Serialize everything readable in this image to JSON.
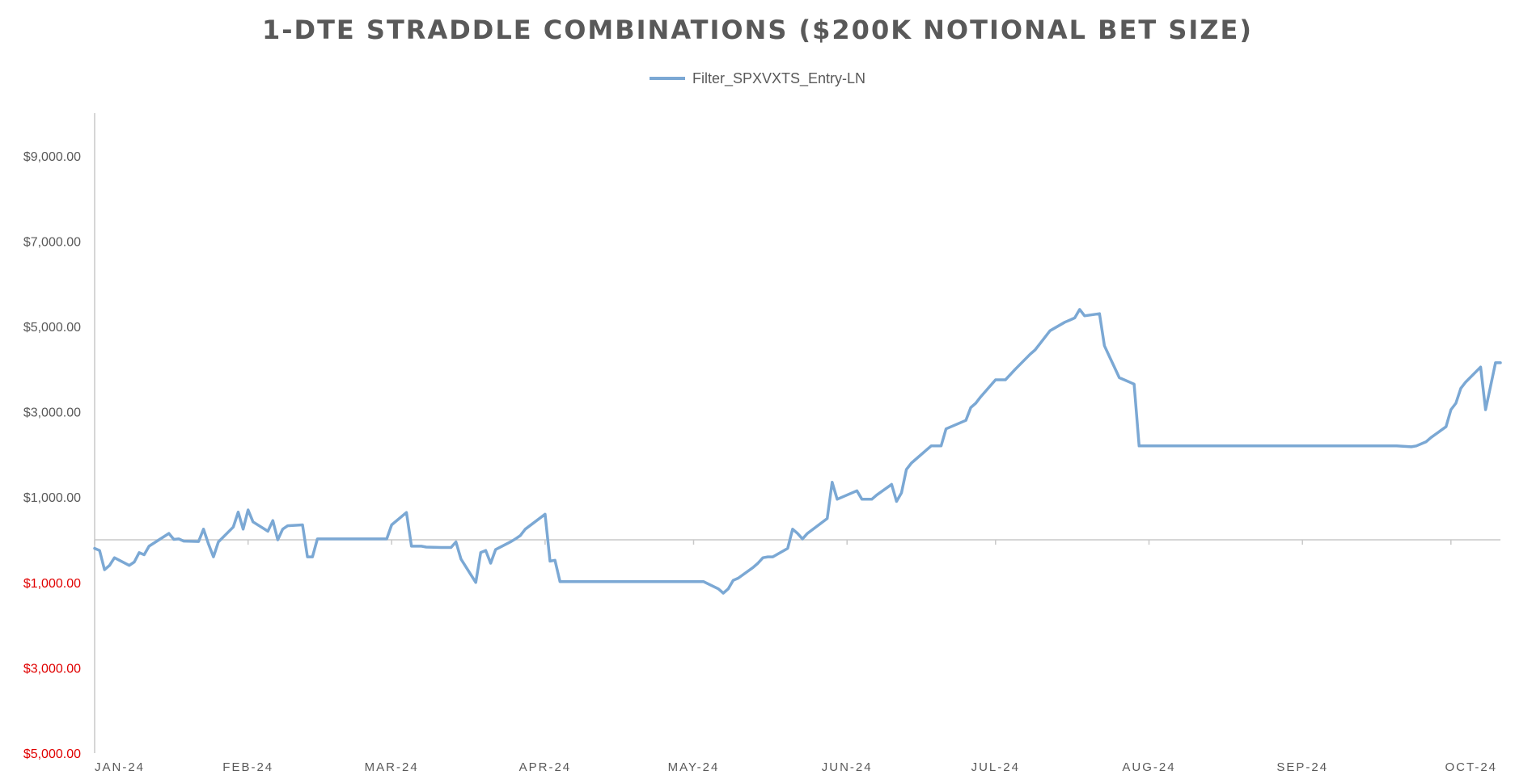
{
  "chart_data": {
    "type": "line",
    "title": "1-DTE STRADDLE COMBINATIONS ($200K NOTIONAL BET SIZE)",
    "xlabel": "",
    "ylabel": "",
    "ylim": [
      -5000,
      10000
    ],
    "y_ticks": [
      {
        "value": 9000,
        "label": "$9,000.00",
        "color": "#595959"
      },
      {
        "value": 7000,
        "label": "$7,000.00",
        "color": "#595959"
      },
      {
        "value": 5000,
        "label": "$5,000.00",
        "color": "#595959"
      },
      {
        "value": 3000,
        "label": "$3,000.00",
        "color": "#595959"
      },
      {
        "value": 1000,
        "label": "$1,000.00",
        "color": "#595959"
      },
      {
        "value": -1000,
        "label": "$1,000.00",
        "color": "#e00000"
      },
      {
        "value": -3000,
        "label": "$3,000.00",
        "color": "#e00000"
      },
      {
        "value": -5000,
        "label": "$5,000.00",
        "color": "#e00000"
      }
    ],
    "x_ticks": [
      "JAN-24",
      "FEB-24",
      "MAR-24",
      "APR-24",
      "MAY-24",
      "JUN-24",
      "JUL-24",
      "AUG-24",
      "SEP-24",
      "OCT-24"
    ],
    "legend_position": "top",
    "grid": false,
    "line_color": "#7ba8d4",
    "series": [
      {
        "name": "Filter_SPXVXTS_Entry-LN",
        "points": [
          [
            "2024-01-01",
            -200
          ],
          [
            "2024-01-02",
            -250
          ],
          [
            "2024-01-03",
            -700
          ],
          [
            "2024-01-04",
            -600
          ],
          [
            "2024-01-05",
            -420
          ],
          [
            "2024-01-08",
            -600
          ],
          [
            "2024-01-09",
            -520
          ],
          [
            "2024-01-10",
            -300
          ],
          [
            "2024-01-11",
            -350
          ],
          [
            "2024-01-12",
            -150
          ],
          [
            "2024-01-16",
            150
          ],
          [
            "2024-01-17",
            10
          ],
          [
            "2024-01-18",
            20
          ],
          [
            "2024-01-19",
            -30
          ],
          [
            "2024-01-22",
            -40
          ],
          [
            "2024-01-23",
            250
          ],
          [
            "2024-01-24",
            -100
          ],
          [
            "2024-01-25",
            -400
          ],
          [
            "2024-01-26",
            -50
          ],
          [
            "2024-01-29",
            300
          ],
          [
            "2024-01-30",
            650
          ],
          [
            "2024-01-31",
            250
          ],
          [
            "2024-02-01",
            700
          ],
          [
            "2024-02-02",
            420
          ],
          [
            "2024-02-05",
            200
          ],
          [
            "2024-02-06",
            450
          ],
          [
            "2024-02-07",
            0
          ],
          [
            "2024-02-08",
            250
          ],
          [
            "2024-02-09",
            330
          ],
          [
            "2024-02-12",
            350
          ],
          [
            "2024-02-13",
            -400
          ],
          [
            "2024-02-14",
            -400
          ],
          [
            "2024-02-15",
            20
          ],
          [
            "2024-02-16",
            20
          ],
          [
            "2024-02-20",
            20
          ],
          [
            "2024-02-21",
            20
          ],
          [
            "2024-02-22",
            20
          ],
          [
            "2024-02-23",
            20
          ],
          [
            "2024-02-26",
            20
          ],
          [
            "2024-02-27",
            20
          ],
          [
            "2024-02-28",
            20
          ],
          [
            "2024-02-29",
            20
          ],
          [
            "2024-03-01",
            350
          ],
          [
            "2024-03-04",
            640
          ],
          [
            "2024-03-05",
            -150
          ],
          [
            "2024-03-06",
            -150
          ],
          [
            "2024-03-07",
            -150
          ],
          [
            "2024-03-08",
            -170
          ],
          [
            "2024-03-11",
            -180
          ],
          [
            "2024-03-12",
            -180
          ],
          [
            "2024-03-13",
            -180
          ],
          [
            "2024-03-14",
            -50
          ],
          [
            "2024-03-15",
            -450
          ],
          [
            "2024-03-18",
            -1000
          ],
          [
            "2024-03-19",
            -300
          ],
          [
            "2024-03-20",
            -250
          ],
          [
            "2024-03-21",
            -550
          ],
          [
            "2024-03-22",
            -230
          ],
          [
            "2024-03-25",
            -50
          ],
          [
            "2024-03-26",
            20
          ],
          [
            "2024-03-27",
            100
          ],
          [
            "2024-03-28",
            250
          ],
          [
            "2024-04-01",
            600
          ],
          [
            "2024-04-02",
            -500
          ],
          [
            "2024-04-03",
            -480
          ],
          [
            "2024-04-04",
            -980
          ],
          [
            "2024-04-05",
            -980
          ],
          [
            "2024-04-08",
            -980
          ],
          [
            "2024-04-30",
            -980
          ],
          [
            "2024-05-03",
            -980
          ],
          [
            "2024-05-06",
            -1150
          ],
          [
            "2024-05-07",
            -1250
          ],
          [
            "2024-05-08",
            -1150
          ],
          [
            "2024-05-09",
            -950
          ],
          [
            "2024-05-10",
            -900
          ],
          [
            "2024-05-13",
            -650
          ],
          [
            "2024-05-14",
            -550
          ],
          [
            "2024-05-15",
            -420
          ],
          [
            "2024-05-16",
            -400
          ],
          [
            "2024-05-17",
            -400
          ],
          [
            "2024-05-20",
            -200
          ],
          [
            "2024-05-21",
            250
          ],
          [
            "2024-05-22",
            150
          ],
          [
            "2024-05-23",
            20
          ],
          [
            "2024-05-24",
            150
          ],
          [
            "2024-05-28",
            500
          ],
          [
            "2024-05-29",
            1350
          ],
          [
            "2024-05-30",
            950
          ],
          [
            "2024-06-03",
            1150
          ],
          [
            "2024-06-04",
            950
          ],
          [
            "2024-06-05",
            950
          ],
          [
            "2024-06-06",
            950
          ],
          [
            "2024-06-07",
            1050
          ],
          [
            "2024-06-10",
            1300
          ],
          [
            "2024-06-11",
            900
          ],
          [
            "2024-06-12",
            1100
          ],
          [
            "2024-06-13",
            1650
          ],
          [
            "2024-06-14",
            1800
          ],
          [
            "2024-06-17",
            2100
          ],
          [
            "2024-06-18",
            2200
          ],
          [
            "2024-06-20",
            2200
          ],
          [
            "2024-06-21",
            2600
          ],
          [
            "2024-06-24",
            2750
          ],
          [
            "2024-06-25",
            2800
          ],
          [
            "2024-06-26",
            3100
          ],
          [
            "2024-06-27",
            3200
          ],
          [
            "2024-06-28",
            3350
          ],
          [
            "2024-07-01",
            3750
          ],
          [
            "2024-07-02",
            3750
          ],
          [
            "2024-07-03",
            3750
          ],
          [
            "2024-07-05",
            4000
          ],
          [
            "2024-07-08",
            4350
          ],
          [
            "2024-07-09",
            4450
          ],
          [
            "2024-07-10",
            4600
          ],
          [
            "2024-07-11",
            4750
          ],
          [
            "2024-07-12",
            4900
          ],
          [
            "2024-07-15",
            5100
          ],
          [
            "2024-07-16",
            5150
          ],
          [
            "2024-07-17",
            5200
          ],
          [
            "2024-07-18",
            5400
          ],
          [
            "2024-07-19",
            5250
          ],
          [
            "2024-07-22",
            5300
          ],
          [
            "2024-07-23",
            4550
          ],
          [
            "2024-07-24",
            4300
          ],
          [
            "2024-07-25",
            4050
          ],
          [
            "2024-07-26",
            3800
          ],
          [
            "2024-07-29",
            3650
          ],
          [
            "2024-07-30",
            2200
          ],
          [
            "2024-08-01",
            2200
          ],
          [
            "2024-09-01",
            2200
          ],
          [
            "2024-09-10",
            2200
          ],
          [
            "2024-09-20",
            2200
          ],
          [
            "2024-09-23",
            2180
          ],
          [
            "2024-09-24",
            2200
          ],
          [
            "2024-09-26",
            2300
          ],
          [
            "2024-09-27",
            2400
          ],
          [
            "2024-09-30",
            2650
          ],
          [
            "2024-10-01",
            3050
          ],
          [
            "2024-10-02",
            3200
          ],
          [
            "2024-10-03",
            3550
          ],
          [
            "2024-10-04",
            3700
          ],
          [
            "2024-10-07",
            4050
          ],
          [
            "2024-10-08",
            3050
          ],
          [
            "2024-10-09",
            3600
          ],
          [
            "2024-10-10",
            4150
          ],
          [
            "2024-10-11",
            4150
          ]
        ]
      }
    ]
  }
}
